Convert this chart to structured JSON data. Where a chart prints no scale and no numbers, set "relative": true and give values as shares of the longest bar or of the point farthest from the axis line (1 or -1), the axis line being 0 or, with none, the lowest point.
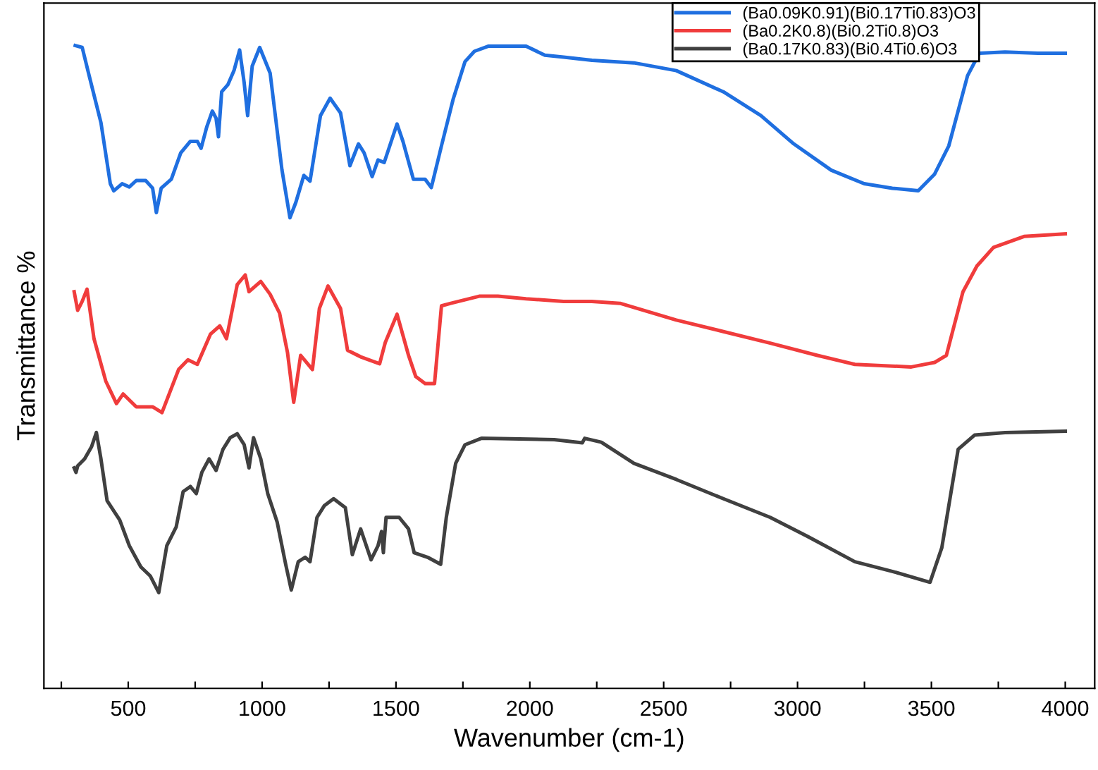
{
  "chart_data": {
    "type": "line",
    "xlabel": "Wavenumber (cm-1)",
    "ylabel": "Transmittance %",
    "relative": true,
    "legend": "top right",
    "grid": false,
    "marker": "none",
    "line_style": "solid",
    "xlim": [
      185,
      4110
    ],
    "xticks": [
      {
        "value": 250,
        "label": null
      },
      500,
      {
        "value": 750,
        "label": null
      },
      1000,
      {
        "value": 1250,
        "label": null
      },
      1500,
      {
        "value": 1750,
        "label": null
      },
      2000,
      {
        "value": 2250,
        "label": null
      },
      2500,
      {
        "value": 2750,
        "label": null
      },
      3000,
      {
        "value": 3250,
        "label": null
      },
      3500,
      {
        "value": 3750,
        "label": null
      },
      4000
    ],
    "series": [
      {
        "name": "(Ba0.09K0.91)(Bi0.17Ti0.83)O3",
        "color": "#1f6fe0",
        "x": [
          302,
          328,
          354,
          398,
          433,
          446,
          477,
          504,
          530,
          565,
          591,
          605,
          623,
          661,
          696,
          732,
          758,
          772,
          793,
          814,
          828,
          837,
          849,
          872,
          895,
          916,
          933,
          946,
          963,
          991,
          1030,
          1074,
          1104,
          1126,
          1156,
          1179,
          1218,
          1254,
          1293,
          1328,
          1360,
          1381,
          1411,
          1433,
          1456,
          1504,
          1526,
          1565,
          1609,
          1632,
          1670,
          1714,
          1758,
          1793,
          1846,
          1986,
          2056,
          2126,
          2232,
          2389,
          2547,
          2723,
          2863,
          2986,
          3126,
          3249,
          3354,
          3451,
          3512,
          3565,
          3635,
          3679,
          3775,
          3898,
          4000
        ],
        "values": [
          1.0,
          0.997,
          0.953,
          0.88,
          0.785,
          0.774,
          0.785,
          0.78,
          0.79,
          0.79,
          0.778,
          0.74,
          0.778,
          0.792,
          0.833,
          0.851,
          0.851,
          0.84,
          0.873,
          0.898,
          0.887,
          0.858,
          0.928,
          0.939,
          0.961,
          0.993,
          0.942,
          0.891,
          0.968,
          0.997,
          0.957,
          0.807,
          0.732,
          0.756,
          0.798,
          0.789,
          0.891,
          0.918,
          0.895,
          0.813,
          0.847,
          0.833,
          0.796,
          0.822,
          0.818,
          0.878,
          0.851,
          0.792,
          0.792,
          0.779,
          0.844,
          0.917,
          0.975,
          0.991,
          0.999,
          0.999,
          0.985,
          0.982,
          0.977,
          0.973,
          0.961,
          0.928,
          0.891,
          0.847,
          0.806,
          0.785,
          0.778,
          0.774,
          0.8,
          0.844,
          0.953,
          0.988,
          0.99,
          0.988,
          0.988
        ]
      },
      {
        "name": "(Ba0.2K0.8)(Bi0.2Ti0.8)O3",
        "color": "#f03c3c",
        "x": [
          298,
          311,
          328,
          346,
          372,
          416,
          456,
          481,
          530,
          591,
          626,
          688,
          723,
          758,
          807,
          842,
          867,
          907,
          937,
          951,
          995,
          1030,
          1065,
          1095,
          1118,
          1144,
          1188,
          1214,
          1246,
          1293,
          1319,
          1372,
          1439,
          1460,
          1504,
          1547,
          1574,
          1609,
          1644,
          1670,
          1705,
          1811,
          1881,
          1986,
          2126,
          2232,
          2337,
          2547,
          2723,
          2898,
          3074,
          3214,
          3425,
          3512,
          3556,
          3618,
          3670,
          3732,
          3846,
          4000
        ],
        "values": [
          0.617,
          0.588,
          0.602,
          0.621,
          0.544,
          0.478,
          0.443,
          0.458,
          0.438,
          0.438,
          0.429,
          0.496,
          0.511,
          0.504,
          0.551,
          0.564,
          0.544,
          0.628,
          0.643,
          0.617,
          0.633,
          0.613,
          0.584,
          0.522,
          0.445,
          0.518,
          0.496,
          0.591,
          0.626,
          0.591,
          0.526,
          0.515,
          0.505,
          0.538,
          0.582,
          0.518,
          0.485,
          0.474,
          0.474,
          0.595,
          0.599,
          0.61,
          0.61,
          0.606,
          0.602,
          0.602,
          0.599,
          0.573,
          0.555,
          0.537,
          0.518,
          0.504,
          0.5,
          0.507,
          0.518,
          0.617,
          0.657,
          0.686,
          0.703,
          0.707
        ]
      },
      {
        "name": "(Ba0.17K0.83)(Bi0.4Ti0.6)O3",
        "color": "#404040",
        "x": [
          298,
          305,
          311,
          337,
          363,
          381,
          398,
          421,
          468,
          504,
          547,
          582,
          614,
          644,
          679,
          705,
          732,
          754,
          775,
          802,
          828,
          854,
          881,
          907,
          933,
          951,
          968,
          995,
          1021,
          1056,
          1088,
          1109,
          1135,
          1161,
          1179,
          1205,
          1232,
          1267,
          1311,
          1337,
          1368,
          1407,
          1433,
          1446,
          1453,
          1463,
          1512,
          1547,
          1568,
          1618,
          1667,
          1688,
          1723,
          1758,
          1819,
          2091,
          2196,
          2205,
          2267,
          2389,
          2547,
          2723,
          2898,
          3035,
          3214,
          3354,
          3495,
          3539,
          3600,
          3661,
          3775,
          4000
        ],
        "values": [
          0.343,
          0.336,
          0.346,
          0.357,
          0.376,
          0.398,
          0.357,
          0.292,
          0.262,
          0.222,
          0.189,
          0.175,
          0.149,
          0.222,
          0.251,
          0.306,
          0.314,
          0.303,
          0.336,
          0.357,
          0.339,
          0.372,
          0.39,
          0.396,
          0.379,
          0.343,
          0.39,
          0.357,
          0.303,
          0.259,
          0.193,
          0.153,
          0.197,
          0.204,
          0.197,
          0.266,
          0.284,
          0.295,
          0.281,
          0.208,
          0.248,
          0.2,
          0.222,
          0.244,
          0.211,
          0.266,
          0.266,
          0.248,
          0.211,
          0.204,
          0.193,
          0.266,
          0.35,
          0.379,
          0.389,
          0.387,
          0.382,
          0.389,
          0.383,
          0.35,
          0.325,
          0.295,
          0.266,
          0.237,
          0.197,
          0.182,
          0.165,
          0.219,
          0.372,
          0.394,
          0.398,
          0.4
        ]
      }
    ]
  }
}
